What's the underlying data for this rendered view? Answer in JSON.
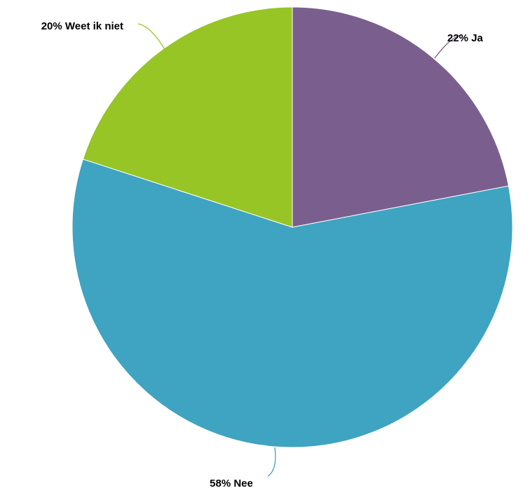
{
  "chart_data": {
    "type": "pie",
    "slices": [
      {
        "label": "Ja",
        "percent_label": "22%",
        "value": 22,
        "color": "#7a5f8e"
      },
      {
        "label": "Nee",
        "percent_label": "58%",
        "value": 58,
        "color": "#3fa3c2"
      },
      {
        "label": "Weet ik niet",
        "percent_label": "20%",
        "value": 20,
        "color": "#97c526"
      }
    ],
    "start_angle": "12 o'clock",
    "direction": "clockwise",
    "legend": "none",
    "data_labels": "outside with leader lines"
  }
}
